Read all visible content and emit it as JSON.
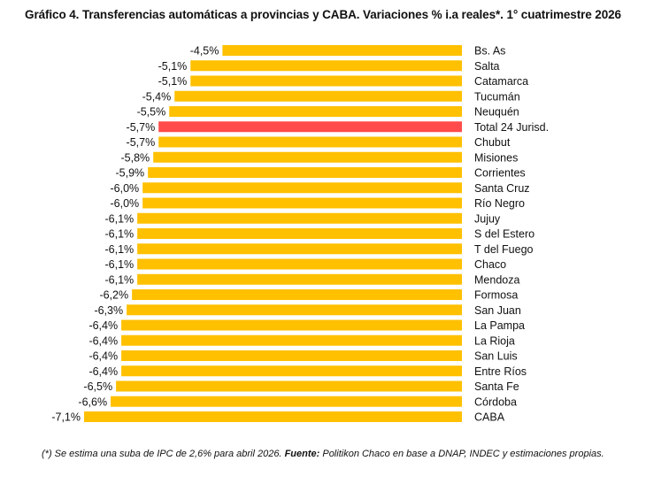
{
  "title": "Gráfico 4. Transferencias automáticas a provincias y CABA. Variaciones % i.a reales*. 1° cuatrimestre 2026",
  "footnote": {
    "text": "(*) Se estima una suba de IPC de 2,6% para abril 2026. ",
    "source_label": "Fuente:",
    "source_text": " Politikon Chaco en base a DNAP, INDEC y estimaciones propias."
  },
  "colors": {
    "bar": "#FFC000",
    "highlight": "#FF4B4B"
  },
  "chart_data": {
    "type": "bar",
    "orientation": "horizontal",
    "categories": [
      "Bs. As",
      "Salta",
      "Catamarca",
      "Tucumán",
      "Neuquén",
      "Total 24 Jurisd.",
      "Chubut",
      "Misiones",
      "Corrientes",
      "Santa Cruz",
      "Río Negro",
      "Jujuy",
      "S del Estero",
      "T del Fuego",
      "Chaco",
      "Mendoza",
      "Formosa",
      "San Juan",
      "La Pampa",
      "La Rioja",
      "San Luis",
      "Entre Ríos",
      "Santa Fe",
      "Córdoba",
      "CABA"
    ],
    "values": [
      -4.5,
      -5.1,
      -5.1,
      -5.4,
      -5.5,
      -5.7,
      -5.7,
      -5.8,
      -5.9,
      -6.0,
      -6.0,
      -6.1,
      -6.1,
      -6.1,
      -6.1,
      -6.1,
      -6.2,
      -6.3,
      -6.4,
      -6.4,
      -6.4,
      -6.4,
      -6.5,
      -6.6,
      -7.1
    ],
    "data_labels": [
      "-4,5%",
      "-5,1%",
      "-5,1%",
      "-5,4%",
      "-5,5%",
      "-5,7%",
      "-5,7%",
      "-5,8%",
      "-5,9%",
      "-6,0%",
      "-6,0%",
      "-6,1%",
      "-6,1%",
      "-6,1%",
      "-6,1%",
      "-6,1%",
      "-6,2%",
      "-6,3%",
      "-6,4%",
      "-6,4%",
      "-6,4%",
      "-6,4%",
      "-6,5%",
      "-6,6%",
      "-7,1%"
    ],
    "highlight_category": "Total 24 Jurisd.",
    "xlim": [
      -7.1,
      0
    ],
    "grid": false,
    "legend": "none"
  }
}
